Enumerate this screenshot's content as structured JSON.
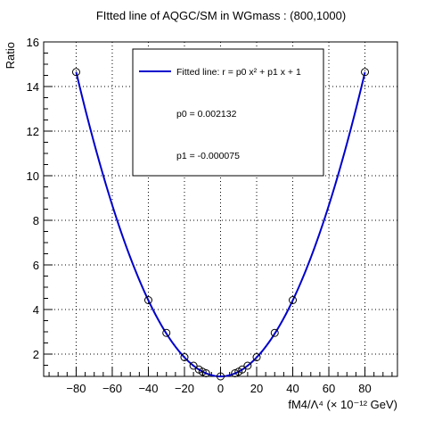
{
  "chart_data": {
    "type": "scatter",
    "title": "FItted line of AQGC/SM in WGmass : (800,1000)",
    "xlabel": "fM4/Λ⁴ (× 10⁻¹² GeV)",
    "ylabel": "Ratio",
    "xlim": [
      -98,
      98
    ],
    "ylim": [
      1,
      16
    ],
    "x_ticks": [
      -80,
      -60,
      -40,
      -20,
      0,
      20,
      40,
      60,
      80
    ],
    "y_ticks": [
      2,
      4,
      6,
      8,
      10,
      12,
      14,
      16
    ],
    "grid": true,
    "legend": {
      "placement": "top-center",
      "line_label": "Fitted line: r =  p0 x² + p1 x + 1",
      "p0_text": "p0 = 0.002132",
      "p1_text": "p1 = -0.000075"
    },
    "fit": {
      "p0": 0.002132,
      "p1": -7.5e-05,
      "color": "#0000cc"
    },
    "points": {
      "x": [
        -80,
        -40,
        -30,
        -20,
        -15,
        -12,
        -10,
        -8,
        0,
        8,
        10,
        12,
        15,
        20,
        30,
        40,
        80
      ],
      "y": [
        14.65,
        4.42,
        2.95,
        1.86,
        1.48,
        1.31,
        1.21,
        1.14,
        1.0,
        1.14,
        1.21,
        1.31,
        1.48,
        1.86,
        2.95,
        4.42,
        14.65
      ]
    }
  }
}
